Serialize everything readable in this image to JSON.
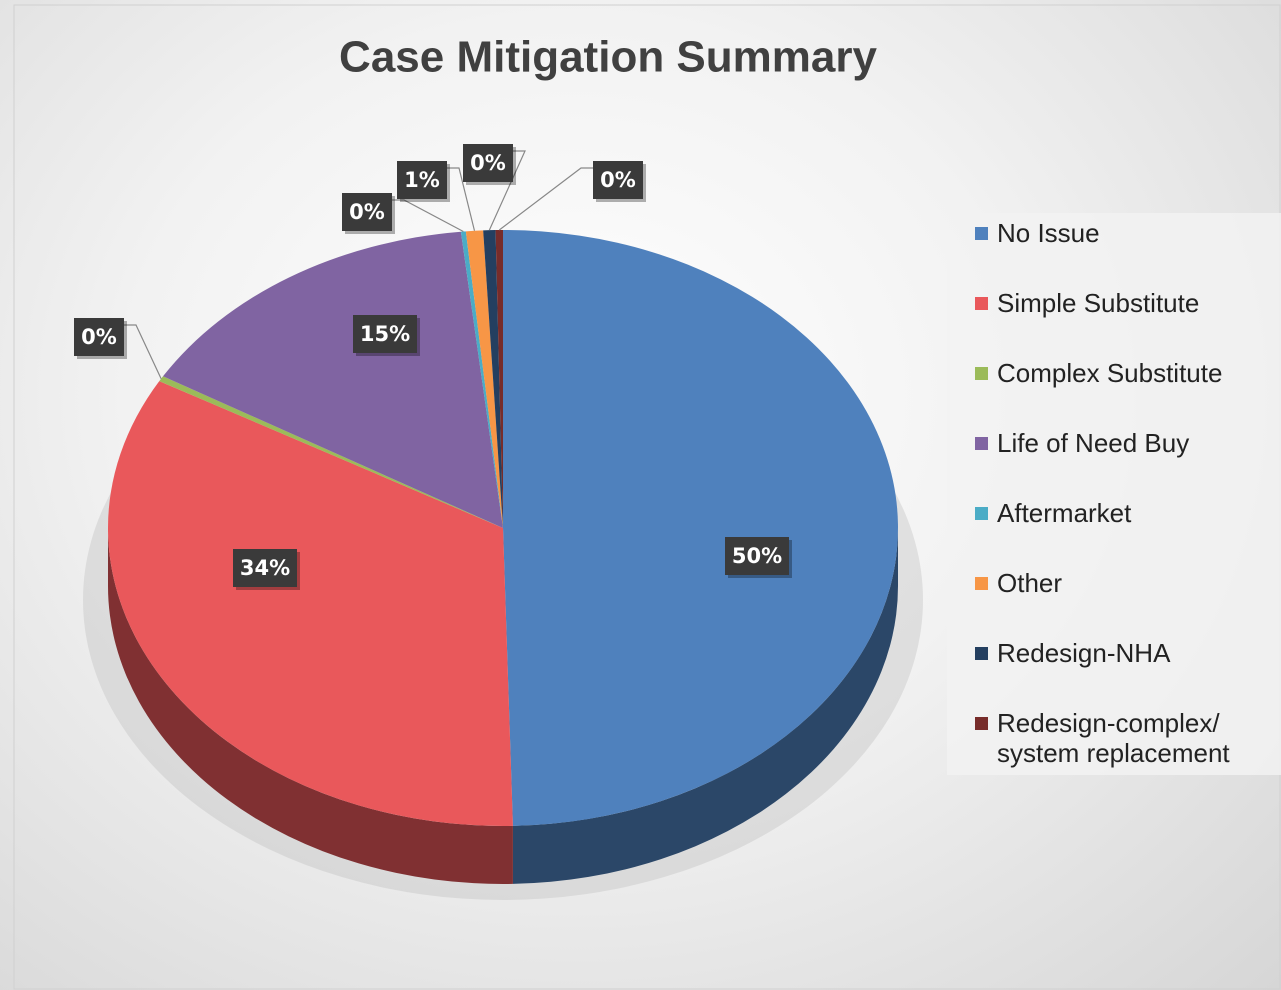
{
  "chart_data": {
    "type": "pie3d",
    "title": "Case Mitigation Summary",
    "categories": [
      "No Issue",
      "Simple Substitute",
      "Complex Substitute",
      "Life of Need Buy",
      "Aftermarket",
      "Other",
      "Redesign-NHA",
      "Redesign-complex/ system replacement"
    ],
    "values": [
      49.6,
      33.6,
      0.3,
      14.8,
      0.2,
      0.7,
      0.5,
      0.3
    ],
    "value_labels": [
      "50%",
      "34%",
      "0%",
      "15%",
      "0%",
      "1%",
      "0%",
      "0%"
    ],
    "colors": [
      "#4f81bd",
      "#e9585b",
      "#9bbb59",
      "#8064a2",
      "#4bacc6",
      "#f79646",
      "#243f60",
      "#772c2a"
    ],
    "legend": "right"
  }
}
